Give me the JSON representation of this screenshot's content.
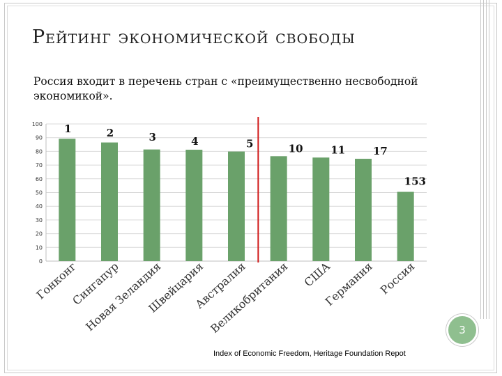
{
  "slide": {
    "title": "Рейтинг экономической свободы",
    "subtitle": "Россия входит в перечень стран с «преимущественно несвободной экономикой».",
    "page_number": "3",
    "source": "Index of Economic Freedom, Heritage Foundation Repot"
  },
  "colors": {
    "bar": "#6aa16a",
    "divider": "#d11a1a",
    "grid": "#d9d9d9"
  },
  "chart_data": {
    "type": "bar",
    "categories": [
      "Гонконг",
      "Сингапур",
      "Новая Зеландия",
      "Швейцария",
      "Австралия",
      "Великобритания",
      "США",
      "Германия",
      "Россия"
    ],
    "values": [
      89.2,
      86.5,
      81.4,
      81.2,
      79.9,
      76.5,
      75.5,
      74.6,
      50.5
    ],
    "rank_labels": [
      "1",
      "2",
      "3",
      "4",
      "5",
      "10",
      "11",
      "17",
      "153"
    ],
    "ylim": [
      0,
      100
    ],
    "yticks": [
      0,
      10,
      20,
      30,
      40,
      50,
      60,
      70,
      80,
      90,
      100
    ],
    "grid": true,
    "divider_after_index": 4
  }
}
